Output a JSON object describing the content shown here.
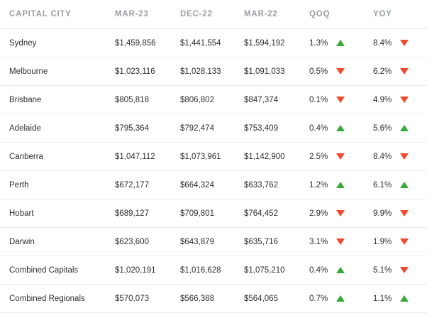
{
  "headers": {
    "city": "CAPITAL CITY",
    "mar23": "MAR-23",
    "dec22": "DEC-22",
    "mar22": "MAR-22",
    "qoq": "QOQ",
    "yoy": "YOY"
  },
  "colors": {
    "up": "#3aa83a",
    "down": "#ef4a2e"
  },
  "rows": [
    {
      "city": "Sydney",
      "mar23": "$1,459,856",
      "dec22": "$1,441,554",
      "mar22": "$1,594,192",
      "qoq": "1.3%",
      "qoq_dir": "up",
      "yoy": "8.4%",
      "yoy_dir": "down"
    },
    {
      "city": "Melbourne",
      "mar23": "$1,023,116",
      "dec22": "$1,028,133",
      "mar22": "$1,091,033",
      "qoq": "0.5%",
      "qoq_dir": "down",
      "yoy": "6.2%",
      "yoy_dir": "down"
    },
    {
      "city": "Brisbane",
      "mar23": "$805,818",
      "dec22": "$806,802",
      "mar22": "$847,374",
      "qoq": "0.1%",
      "qoq_dir": "down",
      "yoy": "4.9%",
      "yoy_dir": "down"
    },
    {
      "city": "Adelaide",
      "mar23": "$795,364",
      "dec22": "$792,474",
      "mar22": "$753,409",
      "qoq": "0.4%",
      "qoq_dir": "up",
      "yoy": "5.6%",
      "yoy_dir": "up"
    },
    {
      "city": "Canberra",
      "mar23": "$1,047,112",
      "dec22": "$1,073,961",
      "mar22": "$1,142,900",
      "qoq": "2.5%",
      "qoq_dir": "down",
      "yoy": "8.4%",
      "yoy_dir": "down"
    },
    {
      "city": "Perth",
      "mar23": "$672,177",
      "dec22": "$664,324",
      "mar22": "$633,762",
      "qoq": "1.2%",
      "qoq_dir": "up",
      "yoy": "6.1%",
      "yoy_dir": "up"
    },
    {
      "city": "Hobart",
      "mar23": "$689,127",
      "dec22": "$709,801",
      "mar22": "$764,452",
      "qoq": "2.9%",
      "qoq_dir": "down",
      "yoy": "9.9%",
      "yoy_dir": "down"
    },
    {
      "city": "Darwin",
      "mar23": "$623,600",
      "dec22": "$643,879",
      "mar22": "$635,716",
      "qoq": "3.1%",
      "qoq_dir": "down",
      "yoy": "1.9%",
      "yoy_dir": "down"
    },
    {
      "city": "Combined Capitals",
      "mar23": "$1,020,191",
      "dec22": "$1,016,628",
      "mar22": "$1,075,210",
      "qoq": "0.4%",
      "qoq_dir": "up",
      "yoy": "5.1%",
      "yoy_dir": "down"
    },
    {
      "city": "Combined Regionals",
      "mar23": "$570,073",
      "dec22": "$566,388",
      "mar22": "$564,065",
      "qoq": "0.7%",
      "qoq_dir": "up",
      "yoy": "1.1%",
      "yoy_dir": "up"
    }
  ]
}
